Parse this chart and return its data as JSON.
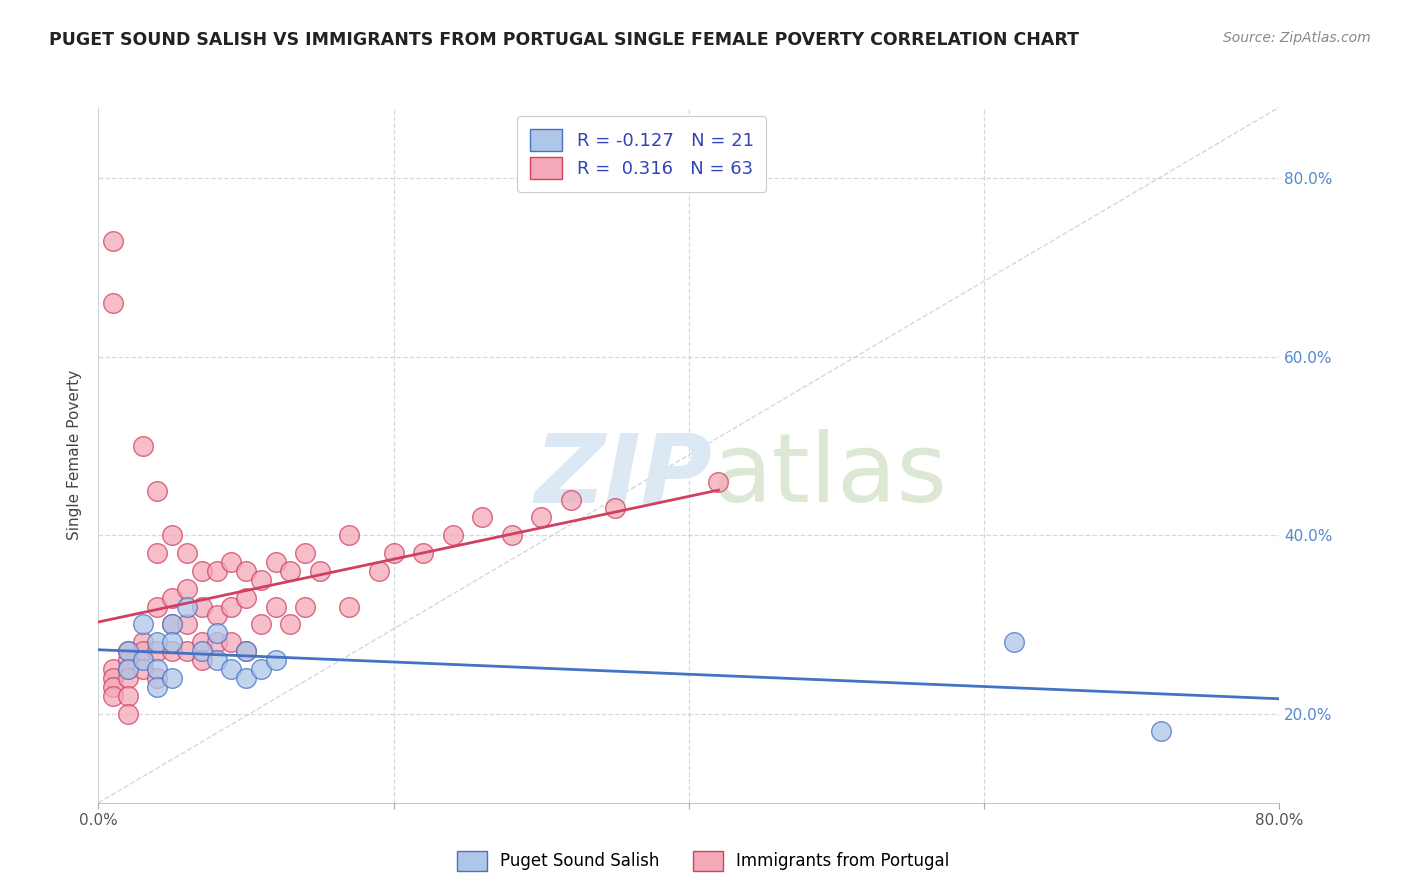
{
  "title": "PUGET SOUND SALISH VS IMMIGRANTS FROM PORTUGAL SINGLE FEMALE POVERTY CORRELATION CHART",
  "source": "Source: ZipAtlas.com",
  "ylabel": "Single Female Poverty",
  "legend_label1": "Puget Sound Salish",
  "legend_label2": "Immigrants from Portugal",
  "r1": -0.127,
  "n1": 21,
  "r2": 0.316,
  "n2": 63,
  "color_blue": "#aec6e8",
  "color_pink": "#f4a8b8",
  "line_blue": "#4472c4",
  "line_pink": "#d04060",
  "background": "#ffffff",
  "xlim": [
    0.0,
    0.8
  ],
  "ylim": [
    0.1,
    0.88
  ],
  "blue_points_x": [
    0.02,
    0.02,
    0.03,
    0.03,
    0.04,
    0.04,
    0.04,
    0.05,
    0.05,
    0.05,
    0.06,
    0.07,
    0.08,
    0.08,
    0.09,
    0.1,
    0.1,
    0.11,
    0.12,
    0.62,
    0.72
  ],
  "blue_points_y": [
    0.27,
    0.25,
    0.3,
    0.26,
    0.28,
    0.25,
    0.23,
    0.3,
    0.28,
    0.24,
    0.32,
    0.27,
    0.29,
    0.26,
    0.25,
    0.27,
    0.24,
    0.25,
    0.26,
    0.28,
    0.18
  ],
  "pink_points_x": [
    0.01,
    0.01,
    0.01,
    0.01,
    0.01,
    0.01,
    0.02,
    0.02,
    0.02,
    0.02,
    0.02,
    0.02,
    0.03,
    0.03,
    0.03,
    0.03,
    0.04,
    0.04,
    0.04,
    0.04,
    0.04,
    0.05,
    0.05,
    0.05,
    0.05,
    0.06,
    0.06,
    0.06,
    0.06,
    0.07,
    0.07,
    0.07,
    0.07,
    0.08,
    0.08,
    0.08,
    0.09,
    0.09,
    0.09,
    0.1,
    0.1,
    0.1,
    0.11,
    0.11,
    0.12,
    0.12,
    0.13,
    0.13,
    0.14,
    0.14,
    0.15,
    0.17,
    0.17,
    0.19,
    0.2,
    0.22,
    0.24,
    0.26,
    0.28,
    0.3,
    0.32,
    0.35,
    0.42
  ],
  "pink_points_y": [
    0.25,
    0.24,
    0.23,
    0.22,
    0.66,
    0.73,
    0.27,
    0.26,
    0.25,
    0.24,
    0.22,
    0.2,
    0.5,
    0.28,
    0.27,
    0.25,
    0.45,
    0.38,
    0.32,
    0.27,
    0.24,
    0.4,
    0.33,
    0.3,
    0.27,
    0.38,
    0.34,
    0.3,
    0.27,
    0.36,
    0.32,
    0.28,
    0.26,
    0.36,
    0.31,
    0.28,
    0.37,
    0.32,
    0.28,
    0.36,
    0.33,
    0.27,
    0.35,
    0.3,
    0.37,
    0.32,
    0.36,
    0.3,
    0.38,
    0.32,
    0.36,
    0.4,
    0.32,
    0.36,
    0.38,
    0.38,
    0.4,
    0.42,
    0.4,
    0.42,
    0.44,
    0.43,
    0.46
  ],
  "yticks": [
    0.2,
    0.4,
    0.6,
    0.8
  ],
  "xticks": [
    0.0,
    0.2,
    0.4,
    0.6,
    0.8
  ],
  "pink_trend_xlim": [
    0.0,
    0.42
  ],
  "blue_trend_xlim": [
    0.0,
    0.8
  ],
  "diag_line": [
    [
      0.0,
      0.8
    ],
    [
      0.1,
      0.88
    ]
  ]
}
